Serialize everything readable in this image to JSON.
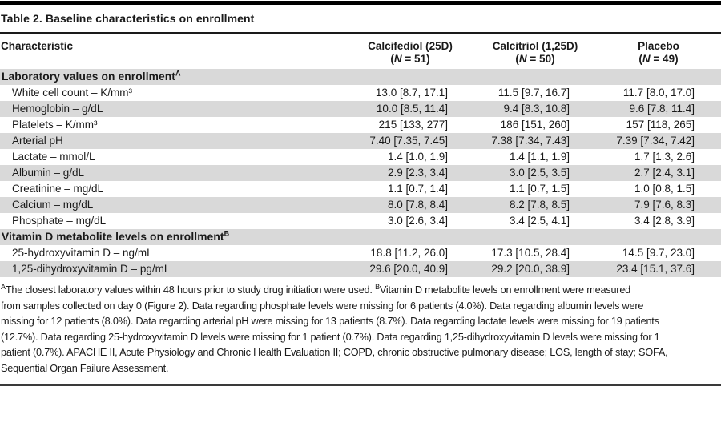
{
  "title": "Table 2. Baseline characteristics on enrollment",
  "colors": {
    "stripe": "#d9d9d9",
    "text": "#1a1a1a",
    "top_rule": "#000000",
    "bottom_rule": "#3a3a3a"
  },
  "columns": {
    "characteristic_label": "Characteristic",
    "groups": [
      {
        "name": "Calcifediol (25D)",
        "n": "(N = 51)"
      },
      {
        "name": "Calcitriol (1,25D)",
        "n": "(N = 50)"
      },
      {
        "name": "Placebo",
        "n": "(N = 49)"
      }
    ]
  },
  "rows": [
    {
      "type": "section",
      "label": "Laboratory values on enrollment",
      "sup": "A",
      "values": [
        "",
        "",
        ""
      ]
    },
    {
      "type": "data",
      "label": "White cell count – K/mm³",
      "values": [
        "13.0 [8.7, 17.1]",
        "11.5 [9.7, 16.7]",
        "11.7 [8.0, 17.0]"
      ]
    },
    {
      "type": "data",
      "label": "Hemoglobin – g/dL",
      "values": [
        "10.0 [8.5, 11.4]",
        "9.4 [8.3, 10.8]",
        "9.6 [7.8, 11.4]"
      ]
    },
    {
      "type": "data",
      "label": "Platelets – K/mm³",
      "values": [
        "215 [133, 277]",
        "186 [151, 260]",
        "157 [118, 265]"
      ]
    },
    {
      "type": "data",
      "label": "Arterial pH",
      "values": [
        "7.40 [7.35, 7.45]",
        "7.38 [7.34, 7.43]",
        "7.39 [7.34, 7.42]"
      ]
    },
    {
      "type": "data",
      "label": "Lactate – mmol/L",
      "values": [
        "1.4 [1.0, 1.9]",
        "1.4 [1.1, 1.9]",
        "1.7 [1.3, 2.6]"
      ]
    },
    {
      "type": "data",
      "label": "Albumin – g/dL",
      "values": [
        "2.9 [2.3, 3.4]",
        "3.0 [2.5, 3.5]",
        "2.7 [2.4, 3.1]"
      ]
    },
    {
      "type": "data",
      "label": "Creatinine – mg/dL",
      "values": [
        "1.1 [0.7, 1.4]",
        "1.1 [0.7, 1.5]",
        "1.0 [0.8, 1.5]"
      ]
    },
    {
      "type": "data",
      "label": "Calcium – mg/dL",
      "values": [
        "8.0 [7.8, 8.4]",
        "8.2 [7.8, 8.5]",
        "7.9 [7.6, 8.3]"
      ]
    },
    {
      "type": "data",
      "label": "Phosphate – mg/dL",
      "values": [
        "3.0 [2.6, 3.4]",
        "3.4 [2.5, 4.1]",
        "3.4 [2.8, 3.9]"
      ]
    },
    {
      "type": "section",
      "label": "Vitamin D metabolite levels on enrollment",
      "sup": "B",
      "values": [
        "",
        "",
        ""
      ]
    },
    {
      "type": "data",
      "label": "25-hydroxyvitamin D – ng/mL",
      "values": [
        "18.8 [11.2, 26.0]",
        "17.3 [10.5, 28.4]",
        "14.5 [9.7, 23.0]"
      ]
    },
    {
      "type": "data",
      "label": "1,25-dihydroxyvitamin D – pg/mL",
      "values": [
        "29.6 [20.0, 40.9]",
        "29.2 [20.0, 38.9]",
        "23.4 [15.1, 37.6]"
      ]
    }
  ],
  "footnote_lines": [
    [
      {
        "sup": "A"
      },
      {
        "text": "The closest laboratory values within 48 hours prior to study drug initiation were used. "
      },
      {
        "sup": "B"
      },
      {
        "text": "Vitamin D metabolite levels on enrollment were measured"
      }
    ],
    [
      {
        "text": "from samples collected on day 0 (Figure 2). Data regarding phosphate levels were missing for 6 patients (4.0%). Data regarding albumin levels were"
      }
    ],
    [
      {
        "text": "missing for 12 patients (8.0%). Data regarding arterial pH were missing for 13 patients (8.7%). Data regarding lactate levels were missing for 19 patients"
      }
    ],
    [
      {
        "text": "(12.7%). Data regarding 25-hydroxyvitamin D levels were missing for 1 patient (0.7%). Data regarding 1,25-dihydroxyvitamin D levels were missing for 1"
      }
    ],
    [
      {
        "text": "patient (0.7%). APACHE II, Acute Physiology and Chronic Health Evaluation II; COPD, chronic obstructive pulmonary disease; LOS, length of stay; SOFA,"
      }
    ],
    [
      {
        "text": "Sequential Organ Failure Assessment."
      }
    ]
  ]
}
